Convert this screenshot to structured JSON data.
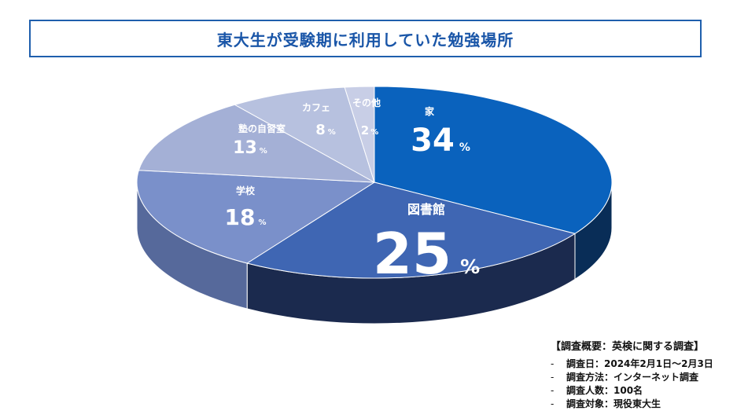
{
  "title": "東大生が受験期に利用していた勉強場所",
  "chart_data": {
    "type": "pie",
    "title": "東大生が受験期に利用していた勉強場所",
    "unit": "%",
    "slices": [
      {
        "label": "家",
        "value": 34,
        "color": "#0a62bd",
        "side": "#092d57"
      },
      {
        "label": "図書館",
        "value": 25,
        "color": "#3f66b3",
        "side": "#1b2a4e"
      },
      {
        "label": "学校",
        "value": 18,
        "color": "#7a90ca",
        "side": "#56699b"
      },
      {
        "label": "塾の自習室",
        "value": 13,
        "color": "#a4b0d6",
        "side": "#7c89ad"
      },
      {
        "label": "カフェ",
        "value": 8,
        "color": "#b7c1df",
        "side": "#8f99b9"
      },
      {
        "label": "その他",
        "value": 2,
        "color": "#c8cee6",
        "side": "#a3aac6"
      }
    ]
  },
  "survey": {
    "title": "【調査概要：英検に関する調査】",
    "dash": "-",
    "items": [
      "調査日：2024年2月1日～2月3日",
      "調査方法：インターネット調査",
      "調査人数：100名",
      "調査対象：現役東大生"
    ]
  }
}
